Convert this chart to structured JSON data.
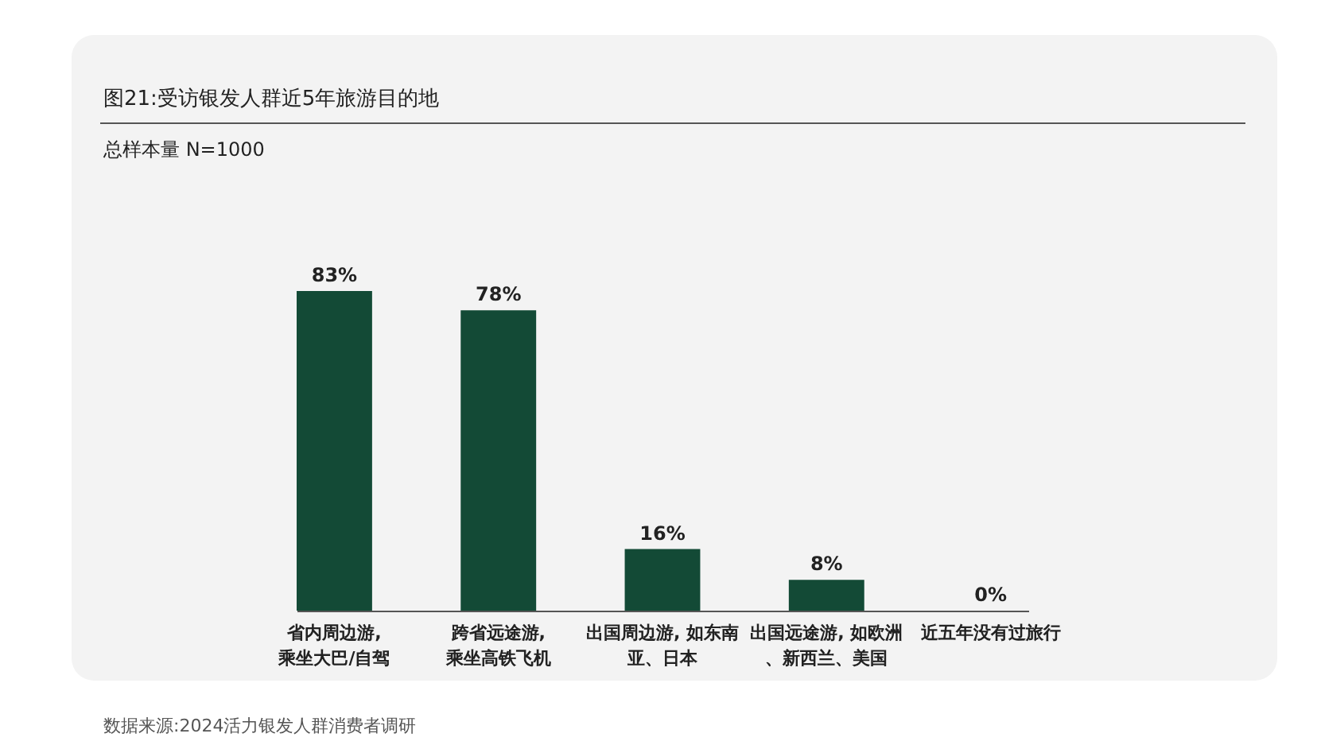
{
  "chart_data": {
    "type": "bar",
    "title": "图21:受访银发人群近5年旅游目的地",
    "subtitle": "总样本量 N=1000",
    "categories": [
      "省内周边游,乘坐大巴/自驾",
      "跨省远途游,乘坐高铁飞机",
      "出国周边游, 如东南亚、日本",
      "出国远途游, 如欧洲、新西兰、美国",
      "近五年没有过旅行"
    ],
    "values": [
      83,
      78,
      16,
      8,
      0
    ],
    "value_labels": [
      "83%",
      "78%",
      "16%",
      "8%",
      "0%"
    ],
    "color": "#134a36",
    "annotations": [
      "数据来源:2024活力银发人群消费者调研"
    ]
  }
}
